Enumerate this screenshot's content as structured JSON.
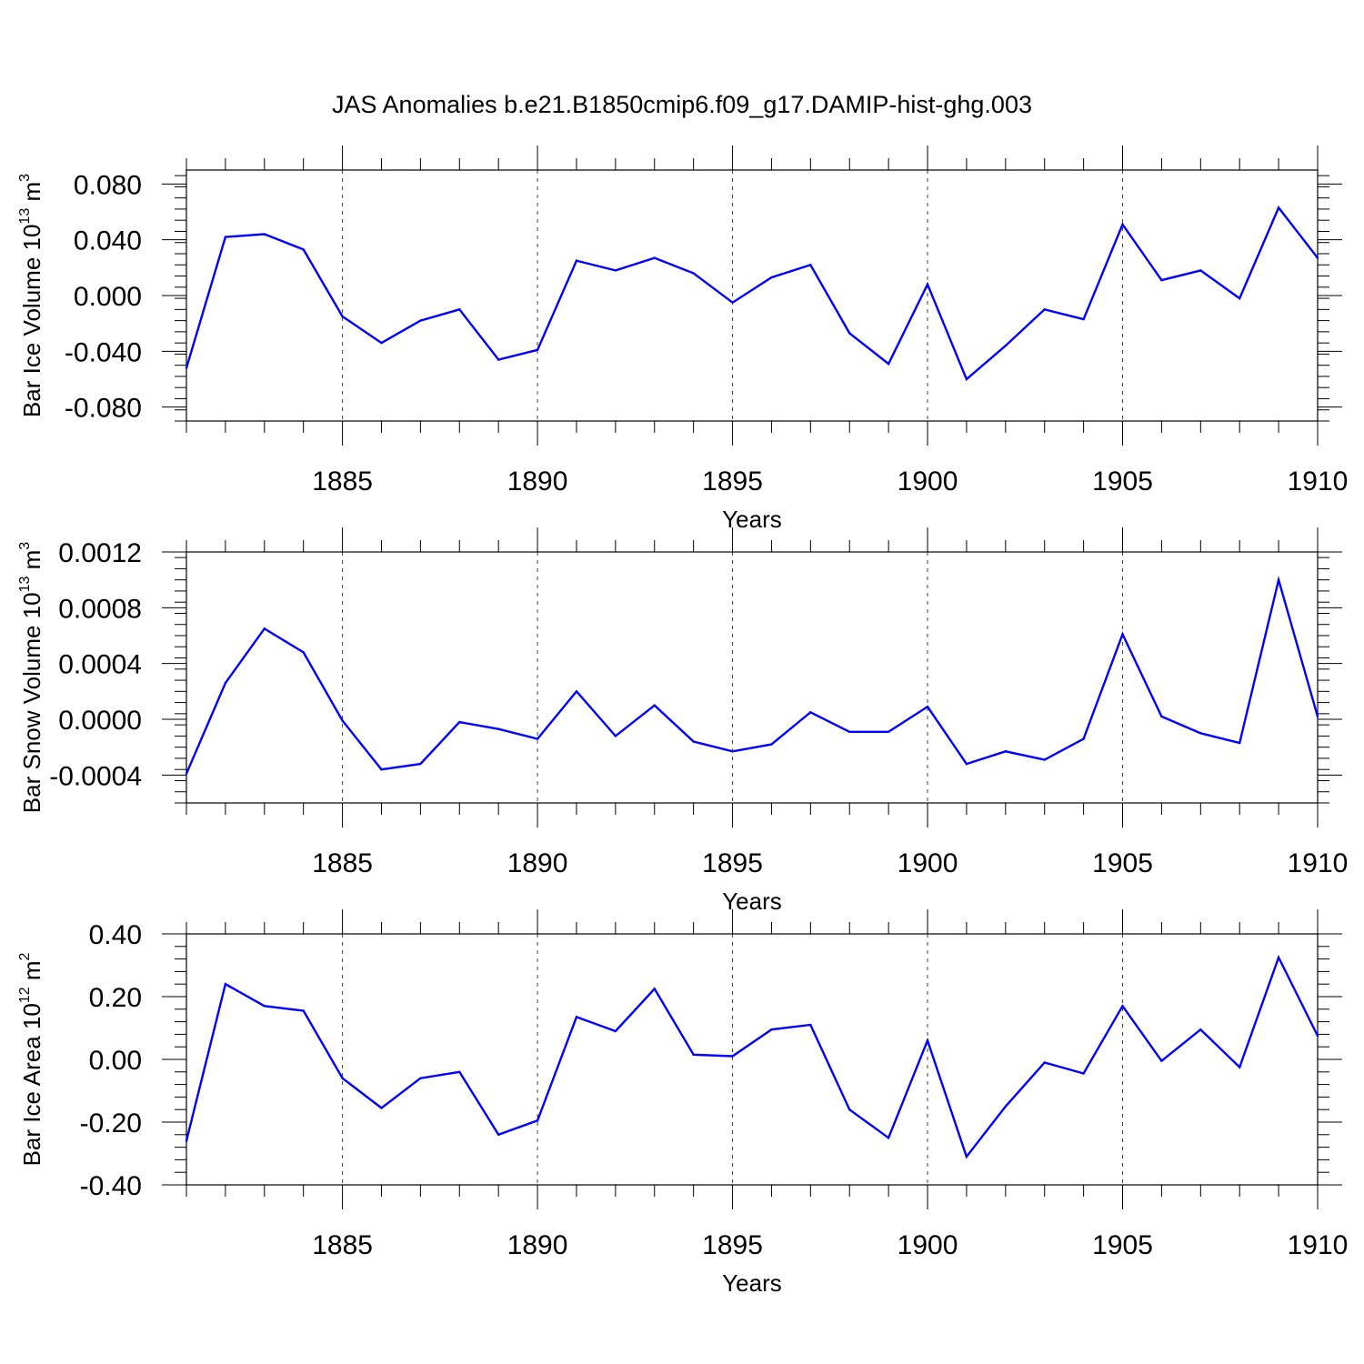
{
  "title": "JAS Anomalies b.e21.B1850cmip6.f09_g17.DAMIP-hist-ghg.003",
  "colors": {
    "line": "#0000ff",
    "axis": "#000000",
    "grid": "#000000"
  },
  "chart_data": [
    {
      "type": "line",
      "ylabel": "Bar Ice Volume 10",
      "ylabel_exp": "13",
      "ylabel_unit": " m",
      "ylabel_unit_exp": "3",
      "xlabel": "Years",
      "xlim": [
        1881,
        1910
      ],
      "ylim": [
        -0.09,
        0.09
      ],
      "yticks": [
        -0.08,
        -0.04,
        0.0,
        0.04,
        0.08
      ],
      "ytick_labels": [
        "-0.080",
        "-0.040",
        "0.000",
        "0.040",
        "0.080"
      ],
      "yminor_step": 0.008,
      "xticks": [
        1885,
        1890,
        1895,
        1900,
        1905,
        1910
      ],
      "xtick_labels": [
        "1885",
        "1890",
        "1895",
        "1900",
        "1905",
        "1910"
      ],
      "grid_x": [
        1885,
        1890,
        1895,
        1900,
        1905
      ],
      "x": [
        1881,
        1882,
        1883,
        1884,
        1885,
        1886,
        1887,
        1888,
        1889,
        1890,
        1891,
        1892,
        1893,
        1894,
        1895,
        1896,
        1897,
        1898,
        1899,
        1900,
        1901,
        1902,
        1903,
        1904,
        1905,
        1906,
        1907,
        1908,
        1909,
        1910
      ],
      "values": [
        -0.052,
        0.042,
        0.044,
        0.033,
        -0.015,
        -0.034,
        -0.018,
        -0.01,
        -0.046,
        -0.039,
        0.025,
        0.018,
        0.027,
        0.016,
        -0.005,
        0.013,
        0.022,
        -0.027,
        -0.049,
        0.008,
        -0.06,
        -0.036,
        -0.01,
        -0.017,
        0.051,
        0.011,
        0.018,
        -0.002,
        0.063,
        0.027
      ]
    },
    {
      "type": "line",
      "ylabel": "Bar Snow Volume 10",
      "ylabel_exp": "13",
      "ylabel_unit": " m",
      "ylabel_unit_exp": "3",
      "xlabel": "Years",
      "xlim": [
        1881,
        1910
      ],
      "ylim": [
        -0.0006,
        0.0012
      ],
      "yticks": [
        -0.0004,
        0.0,
        0.0004,
        0.0008,
        0.0012
      ],
      "ytick_labels": [
        "-0.0004",
        "0.0000",
        "0.0004",
        "0.0008",
        "0.0012"
      ],
      "yminor_step": 8e-05,
      "xticks": [
        1885,
        1890,
        1895,
        1900,
        1905,
        1910
      ],
      "xtick_labels": [
        "1885",
        "1890",
        "1895",
        "1900",
        "1905",
        "1910"
      ],
      "grid_x": [
        1885,
        1890,
        1895,
        1900,
        1905
      ],
      "x": [
        1881,
        1882,
        1883,
        1884,
        1885,
        1886,
        1887,
        1888,
        1889,
        1890,
        1891,
        1892,
        1893,
        1894,
        1895,
        1896,
        1897,
        1898,
        1899,
        1900,
        1901,
        1902,
        1903,
        1904,
        1905,
        1906,
        1907,
        1908,
        1909,
        1910
      ],
      "values": [
        -0.00039,
        0.00026,
        0.00065,
        0.00048,
        -1e-05,
        -0.00036,
        -0.00032,
        -2e-05,
        -7e-05,
        -0.00014,
        0.0002,
        -0.00012,
        0.0001,
        -0.00016,
        -0.00023,
        -0.00018,
        5e-05,
        -9e-05,
        -9e-05,
        9e-05,
        -0.00032,
        -0.00023,
        -0.00029,
        -0.00014,
        0.00061,
        2e-05,
        -0.0001,
        -0.00017,
        0.001,
        2e-05
      ]
    },
    {
      "type": "line",
      "ylabel": "Bar Ice Area 10",
      "ylabel_exp": "12",
      "ylabel_unit": " m",
      "ylabel_unit_exp": "2",
      "xlabel": "Years",
      "xlim": [
        1881,
        1910
      ],
      "ylim": [
        -0.4,
        0.4
      ],
      "yticks": [
        -0.4,
        -0.2,
        0.0,
        0.2,
        0.4
      ],
      "ytick_labels": [
        "-0.40",
        "-0.20",
        "0.00",
        "0.20",
        "0.40"
      ],
      "yminor_step": 0.04,
      "xticks": [
        1885,
        1890,
        1895,
        1900,
        1905,
        1910
      ],
      "xtick_labels": [
        "1885",
        "1890",
        "1895",
        "1900",
        "1905",
        "1910"
      ],
      "grid_x": [
        1885,
        1890,
        1895,
        1900,
        1905
      ],
      "x": [
        1881,
        1882,
        1883,
        1884,
        1885,
        1886,
        1887,
        1888,
        1889,
        1890,
        1891,
        1892,
        1893,
        1894,
        1895,
        1896,
        1897,
        1898,
        1899,
        1900,
        1901,
        1902,
        1903,
        1904,
        1905,
        1906,
        1907,
        1908,
        1909,
        1910
      ],
      "values": [
        -0.26,
        0.24,
        0.17,
        0.155,
        -0.06,
        -0.155,
        -0.06,
        -0.04,
        -0.24,
        -0.195,
        0.135,
        0.09,
        0.225,
        0.015,
        0.01,
        0.095,
        0.11,
        -0.16,
        -0.25,
        0.06,
        -0.31,
        -0.15,
        -0.01,
        -0.045,
        0.17,
        -0.005,
        0.095,
        -0.025,
        0.325,
        0.075
      ]
    }
  ]
}
